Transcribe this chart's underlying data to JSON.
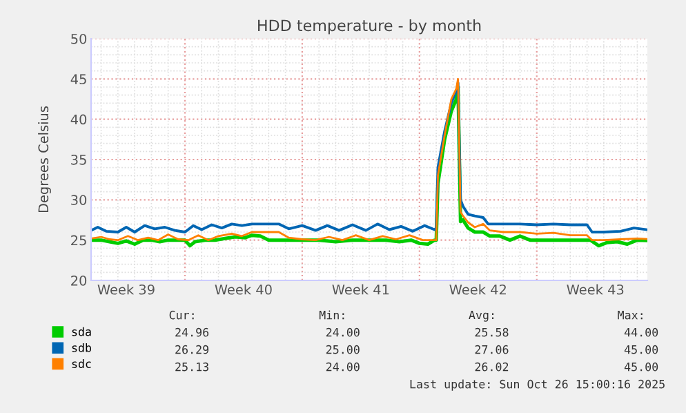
{
  "chart_data": {
    "type": "line",
    "title": "HDD temperature - by month",
    "ylabel": "Degrees Celsius",
    "xlim": [
      "2025-09-23T09:36",
      "2025-10-26T14:24"
    ],
    "ylim": [
      20,
      50
    ],
    "yticks": [
      20,
      25,
      30,
      35,
      40,
      45,
      50
    ],
    "xticks": [
      {
        "value": "2025-09-25T12:00",
        "label": "Week 39"
      },
      {
        "value": "2025-09-29",
        "label": null
      },
      {
        "value": "2025-10-02T12:00",
        "label": "Week 40"
      },
      {
        "value": "2025-10-06",
        "label": null
      },
      {
        "value": "2025-10-09T12:00",
        "label": "Week 41"
      },
      {
        "value": "2025-10-13",
        "label": null
      },
      {
        "value": "2025-10-16T12:00",
        "label": "Week 42"
      },
      {
        "value": "2025-10-20",
        "label": null
      },
      {
        "value": "2025-10-23T12:00",
        "label": "Week 43"
      }
    ],
    "grid": true,
    "legend": "bottom",
    "series": [
      {
        "name": "sda",
        "color": "#00cc00",
        "x": [
          "2025-09-23T09:36",
          "2025-09-24T00:00",
          "2025-09-24T12:00",
          "2025-09-25T00:00",
          "2025-09-25T12:00",
          "2025-09-26T00:00",
          "2025-09-26T12:00",
          "2025-09-27T00:00",
          "2025-09-27T12:00",
          "2025-09-28T00:00",
          "2025-09-28T12:00",
          "2025-09-29T00:00",
          "2025-09-29T07:12",
          "2025-09-29T14:24",
          "2025-09-30T04:48",
          "2025-09-30T19:12",
          "2025-10-01T09:36",
          "2025-10-02T00:00",
          "2025-10-02T14:24",
          "2025-10-03T00:00",
          "2025-10-03T12:00",
          "2025-10-04T00:00",
          "2025-10-04T09:36",
          "2025-10-05T00:00",
          "2025-10-06T00:00",
          "2025-10-07T00:00",
          "2025-10-08T00:00",
          "2025-10-09T00:00",
          "2025-10-10T00:00",
          "2025-10-11T00:00",
          "2025-10-11T19:12",
          "2025-10-12T12:00",
          "2025-10-13T00:00",
          "2025-10-13T12:00",
          "2025-10-13T21:36",
          "2025-10-14T00:00",
          "2025-10-14T02:24",
          "2025-10-14T12:00",
          "2025-10-14T21:36",
          "2025-10-15T04:48",
          "2025-10-15T07:12",
          "2025-10-15T10:48",
          "2025-10-15T14:24",
          "2025-10-15T21:36",
          "2025-10-16T07:12",
          "2025-10-16T19:12",
          "2025-10-17T04:48",
          "2025-10-17T19:12",
          "2025-10-18T09:36",
          "2025-10-19T00:00",
          "2025-10-19T14:24",
          "2025-10-20T12:00",
          "2025-10-21T12:00",
          "2025-10-22T12:00",
          "2025-10-23T04:48",
          "2025-10-23T16:48",
          "2025-10-24T04:48",
          "2025-10-24T19:12",
          "2025-10-25T09:36",
          "2025-10-26T00:00",
          "2025-10-26T14:24"
        ],
        "values": [
          25.0,
          25.0,
          24.8,
          24.6,
          24.9,
          24.5,
          25.0,
          25.0,
          24.8,
          25.0,
          25.0,
          25.0,
          24.3,
          24.8,
          25.0,
          25.0,
          25.2,
          25.4,
          25.3,
          25.6,
          25.5,
          25.0,
          25.0,
          25.0,
          25.0,
          25.0,
          24.8,
          25.0,
          25.0,
          25.0,
          24.8,
          25.0,
          24.6,
          24.5,
          25.0,
          25.0,
          32.0,
          37.5,
          41.0,
          42.5,
          44.0,
          27.3,
          27.5,
          26.5,
          26.0,
          26.0,
          25.5,
          25.5,
          25.0,
          25.5,
          25.0,
          25.0,
          25.0,
          25.0,
          25.0,
          24.3,
          24.7,
          24.8,
          24.5,
          25.0,
          24.96
        ]
      },
      {
        "name": "sdb",
        "color": "#0066b3",
        "x": [
          "2025-09-23T09:36",
          "2025-09-23T19:12",
          "2025-09-24T07:12",
          "2025-09-25T00:00",
          "2025-09-25T12:00",
          "2025-09-26T00:00",
          "2025-09-26T14:24",
          "2025-09-27T04:48",
          "2025-09-27T19:12",
          "2025-09-28T09:36",
          "2025-09-29T00:00",
          "2025-09-29T12:00",
          "2025-09-30T00:00",
          "2025-09-30T14:24",
          "2025-10-01T04:48",
          "2025-10-01T19:12",
          "2025-10-02T09:36",
          "2025-10-03T00:00",
          "2025-10-04T00:00",
          "2025-10-04T14:24",
          "2025-10-05T04:48",
          "2025-10-06T00:00",
          "2025-10-06T19:12",
          "2025-10-07T12:00",
          "2025-10-08T04:48",
          "2025-10-09T00:00",
          "2025-10-09T19:12",
          "2025-10-10T12:00",
          "2025-10-11T04:48",
          "2025-10-11T21:36",
          "2025-10-12T14:24",
          "2025-10-13T07:12",
          "2025-10-13T21:36",
          "2025-10-14T00:00",
          "2025-10-14T02:24",
          "2025-10-14T12:00",
          "2025-10-14T21:36",
          "2025-10-15T04:48",
          "2025-10-15T07:12",
          "2025-10-15T10:48",
          "2025-10-15T14:24",
          "2025-10-15T21:36",
          "2025-10-16T07:12",
          "2025-10-16T19:12",
          "2025-10-17T02:24",
          "2025-10-18T00:00",
          "2025-10-19T00:00",
          "2025-10-20T00:00",
          "2025-10-21T00:00",
          "2025-10-22T00:00",
          "2025-10-23T00:00",
          "2025-10-23T07:12",
          "2025-10-24T00:00",
          "2025-10-25T00:00",
          "2025-10-25T19:12",
          "2025-10-26T04:48",
          "2025-10-26T14:24"
        ],
        "values": [
          26.2,
          26.6,
          26.1,
          26.0,
          26.6,
          26.0,
          26.8,
          26.4,
          26.6,
          26.2,
          26.0,
          26.8,
          26.3,
          26.9,
          26.5,
          27.0,
          26.8,
          27.0,
          27.0,
          27.0,
          26.4,
          26.8,
          26.2,
          26.8,
          26.2,
          26.9,
          26.2,
          27.0,
          26.3,
          26.7,
          26.1,
          26.8,
          26.3,
          26.5,
          34.0,
          38.5,
          42.0,
          43.5,
          44.5,
          30.0,
          29.2,
          28.2,
          28.0,
          27.8,
          27.0,
          27.0,
          27.0,
          26.9,
          27.0,
          26.9,
          26.9,
          26.0,
          26.0,
          26.1,
          26.5,
          26.4,
          26.29
        ]
      },
      {
        "name": "sdc",
        "color": "#ff8000",
        "x": [
          "2025-09-23T09:36",
          "2025-09-24T00:00",
          "2025-09-24T12:00",
          "2025-09-25T00:00",
          "2025-09-25T14:24",
          "2025-09-26T04:48",
          "2025-09-26T19:12",
          "2025-09-27T09:36",
          "2025-09-28T00:00",
          "2025-09-28T14:24",
          "2025-09-29T04:48",
          "2025-09-29T19:12",
          "2025-09-30T09:36",
          "2025-10-01T00:00",
          "2025-10-01T19:12",
          "2025-10-02T09:36",
          "2025-10-03T00:00",
          "2025-10-04T00:00",
          "2025-10-04T14:24",
          "2025-10-05T04:48",
          "2025-10-06T00:00",
          "2025-10-06T19:12",
          "2025-10-07T14:24",
          "2025-10-08T09:36",
          "2025-10-09T04:48",
          "2025-10-10T00:00",
          "2025-10-10T19:12",
          "2025-10-11T14:24",
          "2025-10-12T09:36",
          "2025-10-13T04:48",
          "2025-10-13T21:36",
          "2025-10-14T00:00",
          "2025-10-14T02:24",
          "2025-10-14T12:00",
          "2025-10-14T21:36",
          "2025-10-15T04:48",
          "2025-10-15T07:12",
          "2025-10-15T10:48",
          "2025-10-15T14:24",
          "2025-10-15T21:36",
          "2025-10-16T07:12",
          "2025-10-16T19:12",
          "2025-10-17T04:48",
          "2025-10-18T00:00",
          "2025-10-19T00:00",
          "2025-10-20T00:00",
          "2025-10-21T00:00",
          "2025-10-22T00:00",
          "2025-10-23T00:00",
          "2025-10-23T07:12",
          "2025-10-24T00:00",
          "2025-10-25T00:00",
          "2025-10-26T00:00",
          "2025-10-26T14:24"
        ],
        "values": [
          25.2,
          25.4,
          25.1,
          25.0,
          25.5,
          25.0,
          25.3,
          25.0,
          25.7,
          25.1,
          25.0,
          25.6,
          25.0,
          25.5,
          25.8,
          25.5,
          26.0,
          26.0,
          26.0,
          25.3,
          25.1,
          25.0,
          25.4,
          25.0,
          25.6,
          25.0,
          25.5,
          25.1,
          25.6,
          25.0,
          25.0,
          25.0,
          33.0,
          38.0,
          42.5,
          43.8,
          45.0,
          28.5,
          28.0,
          27.2,
          26.6,
          27.0,
          26.2,
          26.0,
          26.0,
          25.8,
          25.9,
          25.6,
          25.6,
          25.0,
          25.0,
          25.1,
          25.2,
          25.13
        ]
      }
    ],
    "annotations": [
      "Cur:",
      "Min:",
      "Avg:",
      "Max:",
      "24.96",
      "24.00",
      "25.58",
      "44.00",
      "26.29",
      "25.00",
      "27.06",
      "45.00",
      "25.13",
      "24.00",
      "26.02",
      "45.00",
      "Last update: Sun Oct 26 15:00:16 2025"
    ]
  }
}
